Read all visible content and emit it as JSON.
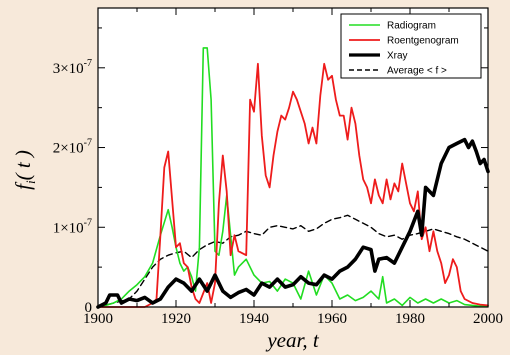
{
  "chart_data": {
    "type": "line",
    "xlabel": "year, t",
    "ylabel": "f_i(t)",
    "xlim": [
      1900,
      2000
    ],
    "ylim": [
      0,
      3.75e-07
    ],
    "xticks": [
      1900,
      1920,
      1940,
      1960,
      1980,
      2000
    ],
    "x_tick_labels": [
      "1900",
      "1920",
      "1940",
      "1960",
      "1980",
      "2000"
    ],
    "yticks": [
      0,
      1e-07,
      2e-07,
      3e-07
    ],
    "y_tick_labels": [
      {
        "mantissa": "0",
        "exp": ""
      },
      {
        "mantissa": "1×10",
        "exp": "-7"
      },
      {
        "mantissa": "2×10",
        "exp": "-7"
      },
      {
        "mantissa": "3×10",
        "exp": "-7"
      }
    ],
    "legend_position": "top-right",
    "colors": {
      "background": "#f7e9da",
      "plot_area": "#ffffff",
      "radiogram": "#22dd22",
      "roentgenogram": "#ee1c1c",
      "xray": "#000000",
      "average": "#000000"
    },
    "series": [
      {
        "name": "Radiogram",
        "style": "solid",
        "width": 1.6,
        "color": "#22dd22",
        "points": [
          [
            1900,
            0
          ],
          [
            1902,
            2e-09
          ],
          [
            1904,
            5e-09
          ],
          [
            1906,
            1e-08
          ],
          [
            1908,
            2e-08
          ],
          [
            1910,
            2.8e-08
          ],
          [
            1912,
            3.8e-08
          ],
          [
            1914,
            5.5e-08
          ],
          [
            1916,
            9e-08
          ],
          [
            1918,
            1.22e-07
          ],
          [
            1919,
            1e-07
          ],
          [
            1920,
            7.5e-08
          ],
          [
            1921,
            5.5e-08
          ],
          [
            1922,
            4.5e-08
          ],
          [
            1923,
            5e-08
          ],
          [
            1924,
            3.8e-08
          ],
          [
            1925,
            2e-08
          ],
          [
            1926,
            7.5e-08
          ],
          [
            1927,
            3.25e-07
          ],
          [
            1928,
            3.25e-07
          ],
          [
            1929,
            2.6e-07
          ],
          [
            1930,
            7e-08
          ],
          [
            1931,
            6.5e-08
          ],
          [
            1932,
            9.5e-08
          ],
          [
            1933,
            1.4e-07
          ],
          [
            1934,
            9e-08
          ],
          [
            1935,
            4e-08
          ],
          [
            1936,
            5e-08
          ],
          [
            1938,
            6e-08
          ],
          [
            1940,
            4e-08
          ],
          [
            1942,
            3e-08
          ],
          [
            1944,
            3.2e-08
          ],
          [
            1946,
            2e-08
          ],
          [
            1948,
            3.5e-08
          ],
          [
            1950,
            3e-08
          ],
          [
            1952,
            1e-08
          ],
          [
            1954,
            4.5e-08
          ],
          [
            1956,
            1.5e-08
          ],
          [
            1958,
            4e-08
          ],
          [
            1960,
            3e-08
          ],
          [
            1962,
            1e-08
          ],
          [
            1964,
            1.5e-08
          ],
          [
            1966,
            8e-09
          ],
          [
            1968,
            1.2e-08
          ],
          [
            1970,
            2e-08
          ],
          [
            1972,
            1e-08
          ],
          [
            1973,
            3.8e-08
          ],
          [
            1974,
            5e-09
          ],
          [
            1976,
            1e-08
          ],
          [
            1978,
            2e-09
          ],
          [
            1980,
            1.2e-08
          ],
          [
            1982,
            5e-09
          ],
          [
            1984,
            1e-08
          ],
          [
            1986,
            5e-09
          ],
          [
            1988,
            1e-08
          ],
          [
            1990,
            5e-09
          ],
          [
            1992,
            8e-09
          ],
          [
            1994,
            3e-09
          ],
          [
            1996,
            2e-09
          ],
          [
            1998,
            1e-09
          ],
          [
            2000,
            1e-09
          ]
        ]
      },
      {
        "name": "Roentgenogram",
        "style": "solid",
        "width": 1.8,
        "color": "#ee1c1c",
        "points": [
          [
            1900,
            0
          ],
          [
            1904,
            0
          ],
          [
            1908,
            0
          ],
          [
            1910,
            0
          ],
          [
            1912,
            0
          ],
          [
            1914,
            5e-09
          ],
          [
            1915,
            1e-08
          ],
          [
            1916,
            9e-08
          ],
          [
            1917,
            1.75e-07
          ],
          [
            1918,
            1.95e-07
          ],
          [
            1919,
            1.35e-07
          ],
          [
            1920,
            7.5e-08
          ],
          [
            1921,
            8e-08
          ],
          [
            1922,
            5.5e-08
          ],
          [
            1923,
            5e-08
          ],
          [
            1924,
            2.5e-08
          ],
          [
            1925,
            1e-08
          ],
          [
            1926,
            5e-09
          ],
          [
            1928,
            3e-08
          ],
          [
            1929,
            5e-09
          ],
          [
            1930,
            3e-08
          ],
          [
            1931,
            1.3e-07
          ],
          [
            1932,
            1.9e-07
          ],
          [
            1933,
            1.45e-07
          ],
          [
            1934,
            6.5e-08
          ],
          [
            1935,
            9e-08
          ],
          [
            1936,
            7e-08
          ],
          [
            1938,
            6.5e-08
          ],
          [
            1939,
            2.6e-07
          ],
          [
            1940,
            2.45e-07
          ],
          [
            1941,
            3.05e-07
          ],
          [
            1942,
            2.15e-07
          ],
          [
            1943,
            1.65e-07
          ],
          [
            1944,
            1.5e-07
          ],
          [
            1945,
            1.9e-07
          ],
          [
            1946,
            2.2e-07
          ],
          [
            1947,
            2.4e-07
          ],
          [
            1948,
            2.35e-07
          ],
          [
            1949,
            2.5e-07
          ],
          [
            1950,
            2.7e-07
          ],
          [
            1951,
            2.6e-07
          ],
          [
            1952,
            2.45e-07
          ],
          [
            1953,
            2.3e-07
          ],
          [
            1954,
            2.05e-07
          ],
          [
            1955,
            2.25e-07
          ],
          [
            1956,
            2.05e-07
          ],
          [
            1957,
            2.65e-07
          ],
          [
            1958,
            3.05e-07
          ],
          [
            1959,
            2.85e-07
          ],
          [
            1960,
            2.9e-07
          ],
          [
            1961,
            2.6e-07
          ],
          [
            1962,
            2.4e-07
          ],
          [
            1963,
            2.4e-07
          ],
          [
            1964,
            2.1e-07
          ],
          [
            1965,
            2.5e-07
          ],
          [
            1966,
            2.3e-07
          ],
          [
            1967,
            1.9e-07
          ],
          [
            1968,
            1.6e-07
          ],
          [
            1969,
            1.5e-07
          ],
          [
            1970,
            1.3e-07
          ],
          [
            1971,
            1.6e-07
          ],
          [
            1972,
            1.4e-07
          ],
          [
            1973,
            1.3e-07
          ],
          [
            1974,
            1.6e-07
          ],
          [
            1975,
            1.35e-07
          ],
          [
            1976,
            1.55e-07
          ],
          [
            1977,
            1.45e-07
          ],
          [
            1978,
            1.8e-07
          ],
          [
            1979,
            1.55e-07
          ],
          [
            1980,
            1.3e-07
          ],
          [
            1981,
            1.2e-07
          ],
          [
            1982,
            1.45e-07
          ],
          [
            1983,
            8.5e-08
          ],
          [
            1984,
            1e-07
          ],
          [
            1985,
            7e-08
          ],
          [
            1986,
            9.5e-08
          ],
          [
            1987,
            7e-08
          ],
          [
            1988,
            5.5e-08
          ],
          [
            1989,
            3e-08
          ],
          [
            1990,
            4e-08
          ],
          [
            1991,
            6e-08
          ],
          [
            1992,
            5e-08
          ],
          [
            1993,
            2e-08
          ],
          [
            1994,
            1e-08
          ],
          [
            1996,
            5e-09
          ],
          [
            1998,
            3e-09
          ],
          [
            2000,
            2e-09
          ]
        ]
      },
      {
        "name": "Xray",
        "style": "solid",
        "width": 3.6,
        "color": "#000000",
        "points": [
          [
            1900,
            0
          ],
          [
            1902,
            5e-09
          ],
          [
            1903,
            1.5e-08
          ],
          [
            1905,
            1.5e-08
          ],
          [
            1906,
            5e-09
          ],
          [
            1908,
            1e-08
          ],
          [
            1910,
            8e-09
          ],
          [
            1912,
            1.2e-08
          ],
          [
            1914,
            5e-09
          ],
          [
            1916,
            1e-08
          ],
          [
            1918,
            2.5e-08
          ],
          [
            1920,
            3.5e-08
          ],
          [
            1922,
            3e-08
          ],
          [
            1924,
            2e-08
          ],
          [
            1926,
            3.5e-08
          ],
          [
            1928,
            2e-08
          ],
          [
            1930,
            4e-08
          ],
          [
            1932,
            2e-08
          ],
          [
            1934,
            1.2e-08
          ],
          [
            1936,
            1.8e-08
          ],
          [
            1938,
            2.2e-08
          ],
          [
            1940,
            1.5e-08
          ],
          [
            1942,
            3e-08
          ],
          [
            1944,
            2.5e-08
          ],
          [
            1946,
            3.5e-08
          ],
          [
            1948,
            2.5e-08
          ],
          [
            1950,
            2.8e-08
          ],
          [
            1952,
            3.8e-08
          ],
          [
            1954,
            3e-08
          ],
          [
            1956,
            2.8e-08
          ],
          [
            1958,
            4e-08
          ],
          [
            1960,
            3.5e-08
          ],
          [
            1962,
            4.5e-08
          ],
          [
            1964,
            5e-08
          ],
          [
            1966,
            6e-08
          ],
          [
            1968,
            7.5e-08
          ],
          [
            1970,
            7.2e-08
          ],
          [
            1971,
            4.5e-08
          ],
          [
            1972,
            6e-08
          ],
          [
            1974,
            6.2e-08
          ],
          [
            1976,
            5.5e-08
          ],
          [
            1978,
            7.5e-08
          ],
          [
            1980,
            9.5e-08
          ],
          [
            1982,
            1.2e-07
          ],
          [
            1983,
            9e-08
          ],
          [
            1984,
            1.5e-07
          ],
          [
            1986,
            1.4e-07
          ],
          [
            1988,
            1.8e-07
          ],
          [
            1990,
            2e-07
          ],
          [
            1992,
            2.05e-07
          ],
          [
            1994,
            2.1e-07
          ],
          [
            1995,
            2e-07
          ],
          [
            1996,
            2.08e-07
          ],
          [
            1997,
            1.95e-07
          ],
          [
            1998,
            1.8e-07
          ],
          [
            1999,
            1.85e-07
          ],
          [
            2000,
            1.7e-07
          ]
        ]
      },
      {
        "name": "Average < f >",
        "style": "dashed",
        "width": 1.4,
        "color": "#000000",
        "points": [
          [
            1900,
            0
          ],
          [
            1904,
            5e-09
          ],
          [
            1908,
            1e-08
          ],
          [
            1910,
            2e-08
          ],
          [
            1912,
            3.5e-08
          ],
          [
            1914,
            5e-08
          ],
          [
            1916,
            6e-08
          ],
          [
            1918,
            6.5e-08
          ],
          [
            1920,
            6.8e-08
          ],
          [
            1922,
            7e-08
          ],
          [
            1924,
            6.2e-08
          ],
          [
            1926,
            7.2e-08
          ],
          [
            1928,
            7.8e-08
          ],
          [
            1930,
            8.2e-08
          ],
          [
            1932,
            8e-08
          ],
          [
            1934,
            8.8e-08
          ],
          [
            1936,
            9e-08
          ],
          [
            1938,
            9.5e-08
          ],
          [
            1940,
            9.2e-08
          ],
          [
            1942,
            9e-08
          ],
          [
            1944,
            1e-07
          ],
          [
            1946,
            1.02e-07
          ],
          [
            1948,
            1e-07
          ],
          [
            1950,
            9.8e-08
          ],
          [
            1952,
            1.02e-07
          ],
          [
            1954,
            9.5e-08
          ],
          [
            1956,
            9.8e-08
          ],
          [
            1958,
            1.05e-07
          ],
          [
            1960,
            1.1e-07
          ],
          [
            1962,
            1.12e-07
          ],
          [
            1964,
            1.15e-07
          ],
          [
            1966,
            1.1e-07
          ],
          [
            1968,
            1.05e-07
          ],
          [
            1970,
            1e-07
          ],
          [
            1972,
            9.2e-08
          ],
          [
            1974,
            8.8e-08
          ],
          [
            1976,
            9e-08
          ],
          [
            1978,
            8.5e-08
          ],
          [
            1980,
            9e-08
          ],
          [
            1982,
            9.2e-08
          ],
          [
            1984,
            9.5e-08
          ],
          [
            1986,
            9.8e-08
          ],
          [
            1988,
            9.5e-08
          ],
          [
            1990,
            9.2e-08
          ],
          [
            1992,
            8.8e-08
          ],
          [
            1994,
            8.5e-08
          ],
          [
            1996,
            8e-08
          ],
          [
            1998,
            7.5e-08
          ],
          [
            2000,
            7e-08
          ]
        ]
      }
    ]
  }
}
